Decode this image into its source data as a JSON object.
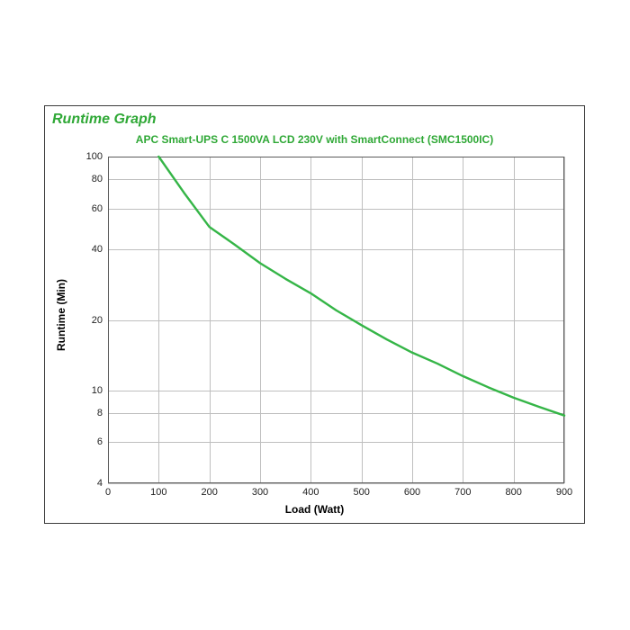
{
  "chart": {
    "type": "line",
    "title": "Runtime Graph",
    "title_color": "#2fa836",
    "title_fontsize": 16,
    "subtitle": "APC Smart-UPS C 1500VA LCD 230V with SmartConnect (SMC1500IC)",
    "subtitle_color": "#2fa836",
    "subtitle_fontsize": 12,
    "xlabel": "Load (Watt)",
    "ylabel": "Runtime (Min)",
    "label_fontsize": 12,
    "tick_fontsize": 11,
    "xlim": [
      0,
      900
    ],
    "ylim_log": [
      4,
      100
    ],
    "xticks": [
      0,
      100,
      200,
      300,
      400,
      500,
      600,
      700,
      800,
      900
    ],
    "yticks": [
      4,
      6,
      8,
      10,
      20,
      40,
      60,
      80,
      100
    ],
    "yscale": "log",
    "grid": true,
    "grid_color": "#bfbfbf",
    "axis_border_color": "#5a5a5a",
    "background_color": "#ffffff",
    "frame_border_color": "#3c3c3c",
    "line_color": "#35b547",
    "line_width": 2.4,
    "series_x": [
      100,
      150,
      200,
      250,
      300,
      350,
      400,
      450,
      500,
      550,
      600,
      650,
      700,
      750,
      800,
      850,
      900
    ],
    "series_y": [
      100,
      70,
      50,
      42,
      35,
      30,
      26,
      22,
      19,
      16.5,
      14.5,
      13,
      11.5,
      10.3,
      9.3,
      8.5,
      7.8
    ]
  }
}
